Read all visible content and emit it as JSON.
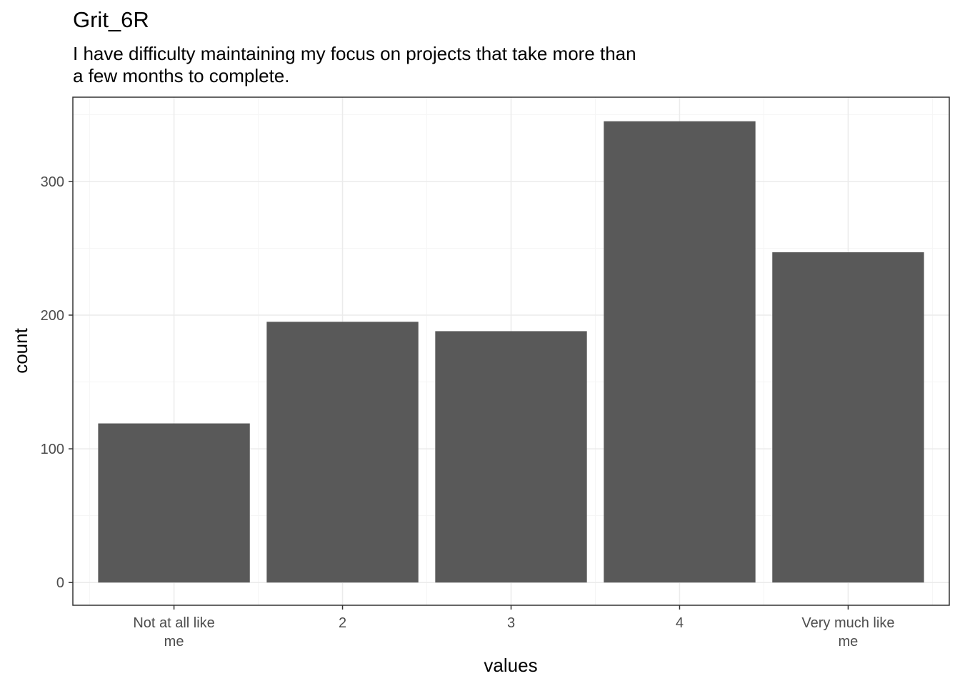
{
  "chart_data": {
    "type": "bar",
    "title": "Grit_6R",
    "subtitle_lines": [
      "I have difficulty maintaining my focus on projects that take more than",
      "a few months to complete."
    ],
    "xlabel": "values",
    "ylabel": "count",
    "categories": [
      [
        "Not at all like",
        "me"
      ],
      [
        "2"
      ],
      [
        "3"
      ],
      [
        "4"
      ],
      [
        "Very much like",
        "me"
      ]
    ],
    "values": [
      119,
      195,
      188,
      345,
      247
    ],
    "ylim": [
      -17,
      363
    ],
    "yticks": [
      0,
      100,
      200,
      300
    ],
    "grid": true,
    "colors": {
      "bar": "#595959",
      "grid_major": "#ebebeb",
      "grid_minor": "#f5f5f5",
      "panel_border": "#333333",
      "axis_text": "#4d4d4d"
    }
  }
}
